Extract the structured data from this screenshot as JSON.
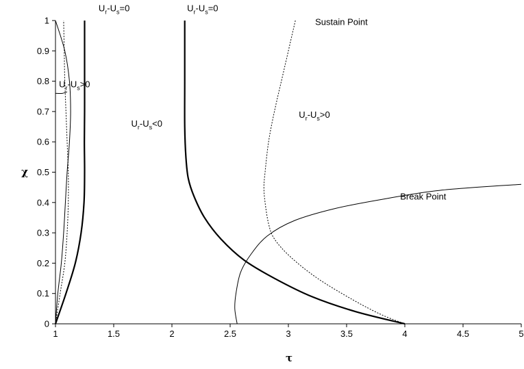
{
  "chart_data": {
    "type": "line",
    "title": "",
    "xlabel": "τ",
    "ylabel": "χ",
    "xlim": [
      1,
      5
    ],
    "ylim": [
      0,
      1
    ],
    "x_ticks": [
      "1",
      "1.5",
      "2",
      "2.5",
      "3",
      "3.5",
      "4",
      "4.5",
      "5"
    ],
    "y_ticks": [
      "0",
      "0.1",
      "0.2",
      "0.3",
      "0.4",
      "0.5",
      "0.6",
      "0.7",
      "0.8",
      "0.9",
      "1"
    ],
    "grid": false,
    "legend": "none",
    "series": [
      {
        "style": "solid-thick",
        "points": [
          [
            1.0,
            0.0
          ],
          [
            1.09,
            0.1
          ],
          [
            1.17,
            0.2
          ],
          [
            1.22,
            0.3
          ],
          [
            1.245,
            0.4
          ],
          [
            1.25,
            0.5
          ],
          [
            1.248,
            0.6
          ],
          [
            1.25,
            0.7
          ],
          [
            1.25,
            0.8
          ],
          [
            1.25,
            0.9
          ],
          [
            1.25,
            1.0
          ]
        ]
      },
      {
        "style": "solid-thin",
        "points": [
          [
            1.0,
            0.0
          ],
          [
            1.02,
            0.1
          ],
          [
            1.05,
            0.2
          ],
          [
            1.07,
            0.3
          ],
          [
            1.085,
            0.4
          ],
          [
            1.1,
            0.5
          ],
          [
            1.12,
            0.6
          ],
          [
            1.13,
            0.7
          ],
          [
            1.12,
            0.8
          ],
          [
            1.08,
            0.9
          ],
          [
            1.0,
            1.0
          ]
        ]
      },
      {
        "style": "dotted",
        "points": [
          [
            1.0,
            0.0
          ],
          [
            1.04,
            0.1
          ],
          [
            1.08,
            0.2
          ],
          [
            1.1,
            0.3
          ],
          [
            1.11,
            0.4
          ],
          [
            1.11,
            0.5
          ],
          [
            1.1,
            0.6
          ],
          [
            1.09,
            0.7
          ],
          [
            1.08,
            0.8
          ],
          [
            1.075,
            0.9
          ],
          [
            1.07,
            1.0
          ]
        ]
      },
      {
        "style": "solid-thick",
        "points": [
          [
            2.11,
            1.0
          ],
          [
            2.11,
            0.8
          ],
          [
            2.11,
            0.65
          ],
          [
            2.12,
            0.55
          ],
          [
            2.14,
            0.48
          ],
          [
            2.19,
            0.42
          ],
          [
            2.28,
            0.35
          ],
          [
            2.42,
            0.28
          ],
          [
            2.62,
            0.21
          ],
          [
            2.88,
            0.15
          ],
          [
            3.2,
            0.09
          ],
          [
            3.58,
            0.04
          ],
          [
            4.0,
            0.0
          ]
        ]
      },
      {
        "style": "dotted",
        "points": [
          [
            3.06,
            1.0
          ],
          [
            2.97,
            0.85
          ],
          [
            2.88,
            0.7
          ],
          [
            2.83,
            0.6
          ],
          [
            2.8,
            0.5
          ],
          [
            2.79,
            0.45
          ],
          [
            2.8,
            0.4
          ],
          [
            2.83,
            0.33
          ],
          [
            2.88,
            0.28
          ],
          [
            3.02,
            0.22
          ],
          [
            3.25,
            0.15
          ],
          [
            3.55,
            0.08
          ],
          [
            3.8,
            0.03
          ],
          [
            4.0,
            0.0
          ]
        ]
      },
      {
        "style": "solid-thin",
        "points": [
          [
            2.56,
            0.0
          ],
          [
            2.54,
            0.05
          ],
          [
            2.55,
            0.1
          ],
          [
            2.59,
            0.17
          ],
          [
            2.68,
            0.23
          ],
          [
            2.82,
            0.29
          ],
          [
            3.05,
            0.34
          ],
          [
            3.4,
            0.38
          ],
          [
            3.8,
            0.41
          ],
          [
            4.3,
            0.44
          ],
          [
            5.0,
            0.46
          ]
        ]
      },
      {
        "style": "solid-thin",
        "points": [
          [
            1.0,
            0.76
          ],
          [
            1.06,
            0.76
          ],
          [
            1.1,
            0.765
          ]
        ]
      }
    ],
    "annotations": [
      {
        "label_main": "U",
        "sub1": "r",
        "mid": "-U",
        "sub2": "s",
        "tail": "=0",
        "at": [
          1.37,
          1.03
        ]
      },
      {
        "label_main": "U",
        "sub1": "r",
        "mid": "-U",
        "sub2": "s",
        "tail": "=0",
        "at": [
          2.13,
          1.03
        ]
      },
      {
        "label_main": "U",
        "sub1": "r",
        "mid": "-U",
        "sub2": "s",
        "tail": ">0",
        "at": [
          1.03,
          0.78
        ]
      },
      {
        "label_main": "U",
        "sub1": "r",
        "mid": "-U",
        "sub2": "s",
        "tail": "<0",
        "at": [
          1.65,
          0.65
        ]
      },
      {
        "label_main": "U",
        "sub1": "r",
        "mid": "-U",
        "sub2": "s",
        "tail": ">0",
        "at": [
          3.09,
          0.68
        ]
      },
      {
        "plain": "Sustain Point",
        "at": [
          3.23,
          0.985
        ]
      },
      {
        "plain": "Break Point",
        "at": [
          3.96,
          0.41
        ]
      }
    ]
  }
}
